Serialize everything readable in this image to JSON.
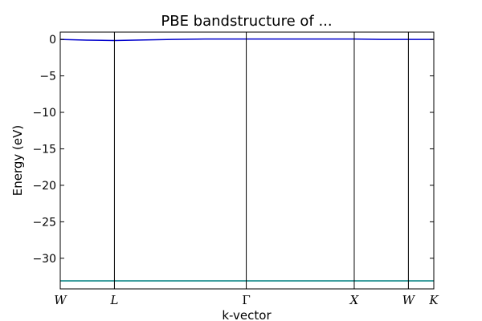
{
  "chart_data": {
    "type": "line",
    "title": "PBE bandstructure of ...",
    "xlabel": "k-vector",
    "ylabel": "Energy (eV)",
    "ylim": [
      -34.2,
      1.0
    ],
    "yticks": [
      0,
      -5,
      -10,
      -15,
      -20,
      -25,
      -30
    ],
    "ytick_labels": [
      "0",
      "−5",
      "−10",
      "−15",
      "−20",
      "−25",
      "−30"
    ],
    "grid": false,
    "special_points": [
      {
        "label": "W",
        "k": 0.0
      },
      {
        "label": "L",
        "k": 0.145
      },
      {
        "label": "Γ",
        "k": 0.498
      },
      {
        "label": "X",
        "k": 0.787
      },
      {
        "label": "W",
        "k": 0.932
      },
      {
        "label": "K",
        "k": 1.0
      }
    ],
    "series": [
      {
        "color": "#0000cc",
        "x": [
          0.0,
          0.07,
          0.145,
          0.2,
          0.3,
          0.4,
          0.498,
          0.6,
          0.7,
          0.787,
          0.86,
          0.932,
          1.0
        ],
        "y": [
          0.0,
          -0.1,
          -0.15,
          -0.1,
          0.0,
          0.05,
          0.05,
          0.05,
          0.05,
          0.05,
          0.0,
          0.0,
          0.0
        ]
      },
      {
        "color": "#008080",
        "x": [
          0.0,
          0.145,
          0.498,
          0.787,
          0.932,
          1.0
        ],
        "y": [
          -33.1,
          -33.1,
          -33.1,
          -33.1,
          -33.1,
          -33.1
        ]
      }
    ]
  }
}
